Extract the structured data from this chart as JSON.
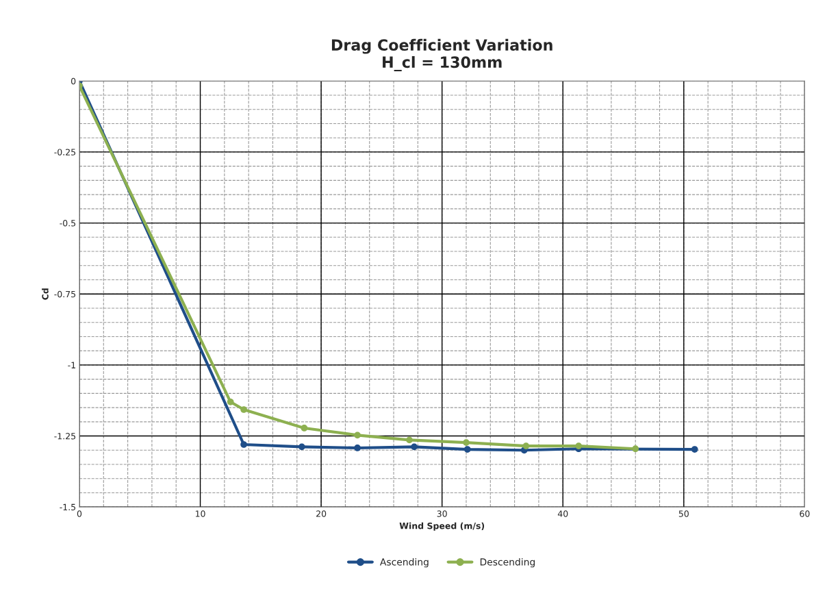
{
  "chart_data": {
    "type": "line",
    "title": "Drag Coefficient Variation\nH_cl = 130mm",
    "xlabel": "Wind Speed (m/s)",
    "ylabel": "Cd",
    "xlim": [
      0,
      60
    ],
    "xticks": [
      0,
      10,
      20,
      30,
      40,
      50,
      60
    ],
    "ylim": [
      -1.5,
      0
    ],
    "yticks": [
      -1.5,
      -1.25,
      -1,
      -0.75,
      -0.5,
      -0.25,
      0
    ],
    "grid": true,
    "legend": "bottom",
    "marker": "circle",
    "line_style": "solid",
    "series": [
      {
        "name": "Ascending",
        "color": "#1f4e89",
        "x": [
          0,
          13.6,
          18.4,
          23.0,
          27.7,
          32.1,
          36.8,
          41.3,
          50.9
        ],
        "values": [
          0,
          -1.28,
          -1.288,
          -1.292,
          -1.288,
          -1.297,
          -1.3,
          -1.295,
          -1.297
        ]
      },
      {
        "name": "Descending",
        "color": "#8db050",
        "x": [
          0,
          12.5,
          13.6,
          18.6,
          23.0,
          27.3,
          32.0,
          36.95,
          41.3,
          46.0
        ],
        "values": [
          -0.017,
          -1.13,
          -1.157,
          -1.222,
          -1.247,
          -1.264,
          -1.273,
          -1.285,
          -1.285,
          -1.295
        ]
      }
    ]
  }
}
